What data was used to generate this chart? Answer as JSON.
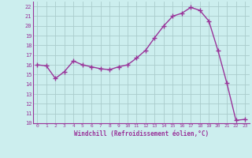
{
  "hours": [
    0,
    1,
    2,
    3,
    4,
    5,
    6,
    7,
    8,
    9,
    10,
    11,
    12,
    13,
    14,
    15,
    16,
    17,
    18,
    19,
    20,
    21,
    22,
    23
  ],
  "values": [
    16.0,
    15.9,
    14.6,
    15.3,
    16.4,
    16.0,
    15.8,
    15.6,
    15.5,
    15.8,
    16.0,
    16.7,
    17.5,
    18.8,
    20.0,
    21.0,
    21.3,
    21.9,
    21.6,
    20.5,
    17.5,
    14.1,
    10.3,
    10.4
  ],
  "line_color": "#993399",
  "marker": "+",
  "marker_size": 4,
  "bg_color": "#cceeee",
  "grid_color": "#aacccc",
  "xlabel": "Windchill (Refroidissement éolien,°C)",
  "xlabel_color": "#993399",
  "tick_color": "#993399",
  "ylim": [
    10,
    22.5
  ],
  "yticks": [
    10,
    11,
    12,
    13,
    14,
    15,
    16,
    17,
    18,
    19,
    20,
    21,
    22
  ],
  "xticks": [
    0,
    1,
    2,
    3,
    4,
    5,
    6,
    7,
    8,
    9,
    10,
    11,
    12,
    13,
    14,
    15,
    16,
    17,
    18,
    19,
    20,
    21,
    22,
    23
  ],
  "line_width": 1.0
}
